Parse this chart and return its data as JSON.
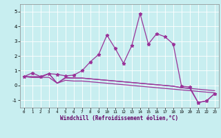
{
  "xlabel": "Windchill (Refroidissement éolien,°C)",
  "background_color": "#c8eef0",
  "line_color": "#993399",
  "grid_color": "#aacccc",
  "ylim": [
    -1.5,
    5.5
  ],
  "xlim": [
    -0.5,
    23.5
  ],
  "yticks": [
    -1,
    0,
    1,
    2,
    3,
    4,
    5
  ],
  "xticks": [
    0,
    1,
    2,
    3,
    4,
    5,
    6,
    7,
    8,
    9,
    10,
    11,
    12,
    13,
    14,
    15,
    16,
    17,
    18,
    19,
    20,
    21,
    22,
    23
  ],
  "line1_y": [
    0.6,
    0.85,
    0.6,
    0.8,
    0.75,
    0.65,
    0.7,
    1.0,
    1.6,
    2.1,
    3.4,
    2.5,
    1.5,
    2.7,
    4.85,
    2.8,
    3.5,
    3.3,
    2.8,
    -0.05,
    -0.1,
    -1.15,
    -1.05,
    -0.55
  ],
  "line2_y": [
    0.6,
    0.55,
    0.55,
    0.55,
    0.15,
    0.35,
    0.3,
    0.3,
    0.25,
    0.2,
    0.15,
    0.1,
    0.05,
    0.0,
    -0.05,
    -0.1,
    -0.15,
    -0.2,
    -0.25,
    -0.3,
    -0.35,
    -0.4,
    -0.45,
    -0.5
  ],
  "line3_y": [
    0.6,
    0.55,
    0.55,
    0.8,
    0.15,
    0.5,
    0.5,
    0.5,
    0.45,
    0.4,
    0.35,
    0.3,
    0.25,
    0.2,
    0.15,
    0.1,
    0.05,
    0.0,
    -0.05,
    -0.15,
    -0.2,
    -0.25,
    -0.3,
    -0.35
  ],
  "line4_y": [
    0.6,
    0.6,
    0.6,
    0.8,
    0.15,
    0.55,
    0.5,
    0.5,
    0.45,
    0.4,
    0.35,
    0.3,
    0.25,
    0.2,
    0.15,
    0.1,
    0.05,
    0.0,
    -0.05,
    -0.15,
    -0.2,
    -1.15,
    -1.05,
    -0.55
  ]
}
